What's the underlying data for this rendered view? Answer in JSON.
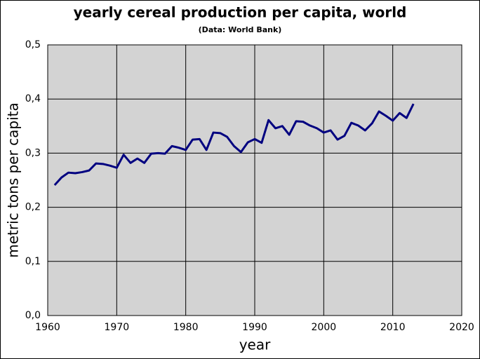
{
  "chart_data": {
    "type": "line",
    "title": "yearly cereal production per capita, world",
    "subtitle": "(Data: World Bank)",
    "x_label": "year",
    "y_label": "metric tons per capita",
    "x": [
      1961,
      1962,
      1963,
      1964,
      1965,
      1966,
      1967,
      1968,
      1969,
      1970,
      1971,
      1972,
      1973,
      1974,
      1975,
      1976,
      1977,
      1978,
      1979,
      1980,
      1981,
      1982,
      1983,
      1984,
      1985,
      1986,
      1987,
      1988,
      1989,
      1990,
      1991,
      1992,
      1993,
      1994,
      1995,
      1996,
      1997,
      1998,
      1999,
      2000,
      2001,
      2002,
      2003,
      2004,
      2005,
      2006,
      2007,
      2008,
      2009,
      2010,
      2011,
      2012,
      2013
    ],
    "series": [
      {
        "name": "cereal production per capita",
        "color": "#000080",
        "values": [
          0.241,
          0.255,
          0.264,
          0.263,
          0.265,
          0.268,
          0.281,
          0.28,
          0.277,
          0.273,
          0.297,
          0.282,
          0.29,
          0.282,
          0.299,
          0.3,
          0.299,
          0.313,
          0.31,
          0.306,
          0.325,
          0.326,
          0.306,
          0.338,
          0.337,
          0.33,
          0.313,
          0.302,
          0.32,
          0.326,
          0.319,
          0.361,
          0.346,
          0.35,
          0.334,
          0.359,
          0.358,
          0.351,
          0.346,
          0.338,
          0.342,
          0.325,
          0.332,
          0.356,
          0.351,
          0.342,
          0.355,
          0.377,
          0.369,
          0.36,
          0.374,
          0.365,
          0.391
        ]
      }
    ],
    "xlim": [
      1960,
      2020
    ],
    "xticks": [
      1960,
      1970,
      1980,
      1990,
      2000,
      2010,
      2020
    ],
    "ylim": [
      0,
      0.5
    ],
    "yticks": [
      {
        "value": 0,
        "label": "0,0"
      },
      {
        "value": 0.1,
        "label": "0,1"
      },
      {
        "value": 0.2,
        "label": "0,2"
      },
      {
        "value": 0.3,
        "label": "0,3"
      },
      {
        "value": 0.4,
        "label": "0,4"
      },
      {
        "value": 0.5,
        "label": "0,5"
      }
    ],
    "grid": true,
    "background": "#d3d3d3"
  }
}
